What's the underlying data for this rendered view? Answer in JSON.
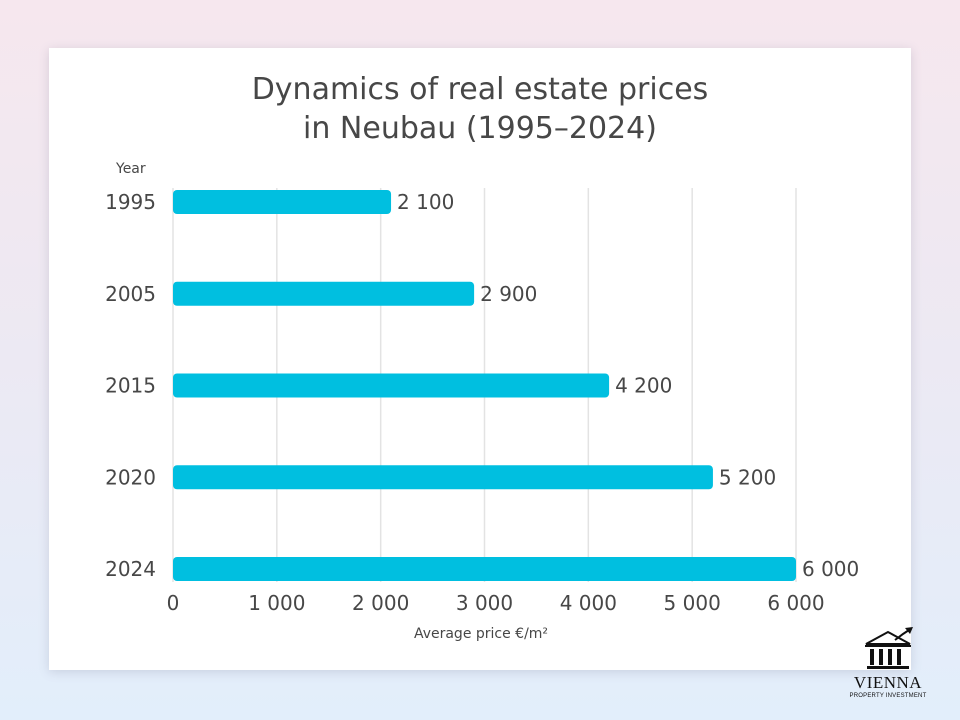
{
  "chart_data": {
    "type": "bar",
    "orientation": "horizontal",
    "title_line1": "Dynamics of real estate prices",
    "title_line2": "in Neubau (1995–2024)",
    "ylabel": "Year",
    "xlabel": "Average price €/m²",
    "categories": [
      "1995",
      "2005",
      "2015",
      "2020",
      "2024"
    ],
    "values": [
      2100,
      2900,
      4200,
      5200,
      6000
    ],
    "value_labels": [
      "2 100",
      "2 900",
      "4 200",
      "5 200",
      "6 000"
    ],
    "xlim": [
      0,
      6000
    ],
    "xticks": [
      0,
      1000,
      2000,
      3000,
      4000,
      5000,
      6000
    ],
    "xtick_labels": [
      "0",
      "1 000",
      "2 000",
      "3 000",
      "4 000",
      "5 000",
      "6 000"
    ],
    "grid": true,
    "bar_color": "#00bfe0"
  },
  "logo": {
    "name": "VIENNA",
    "subtitle": "PROPERTY INVESTMENT"
  },
  "colors": {
    "text": "#474747",
    "grid": "#e3e3e3",
    "bar": "#00bfe0"
  }
}
